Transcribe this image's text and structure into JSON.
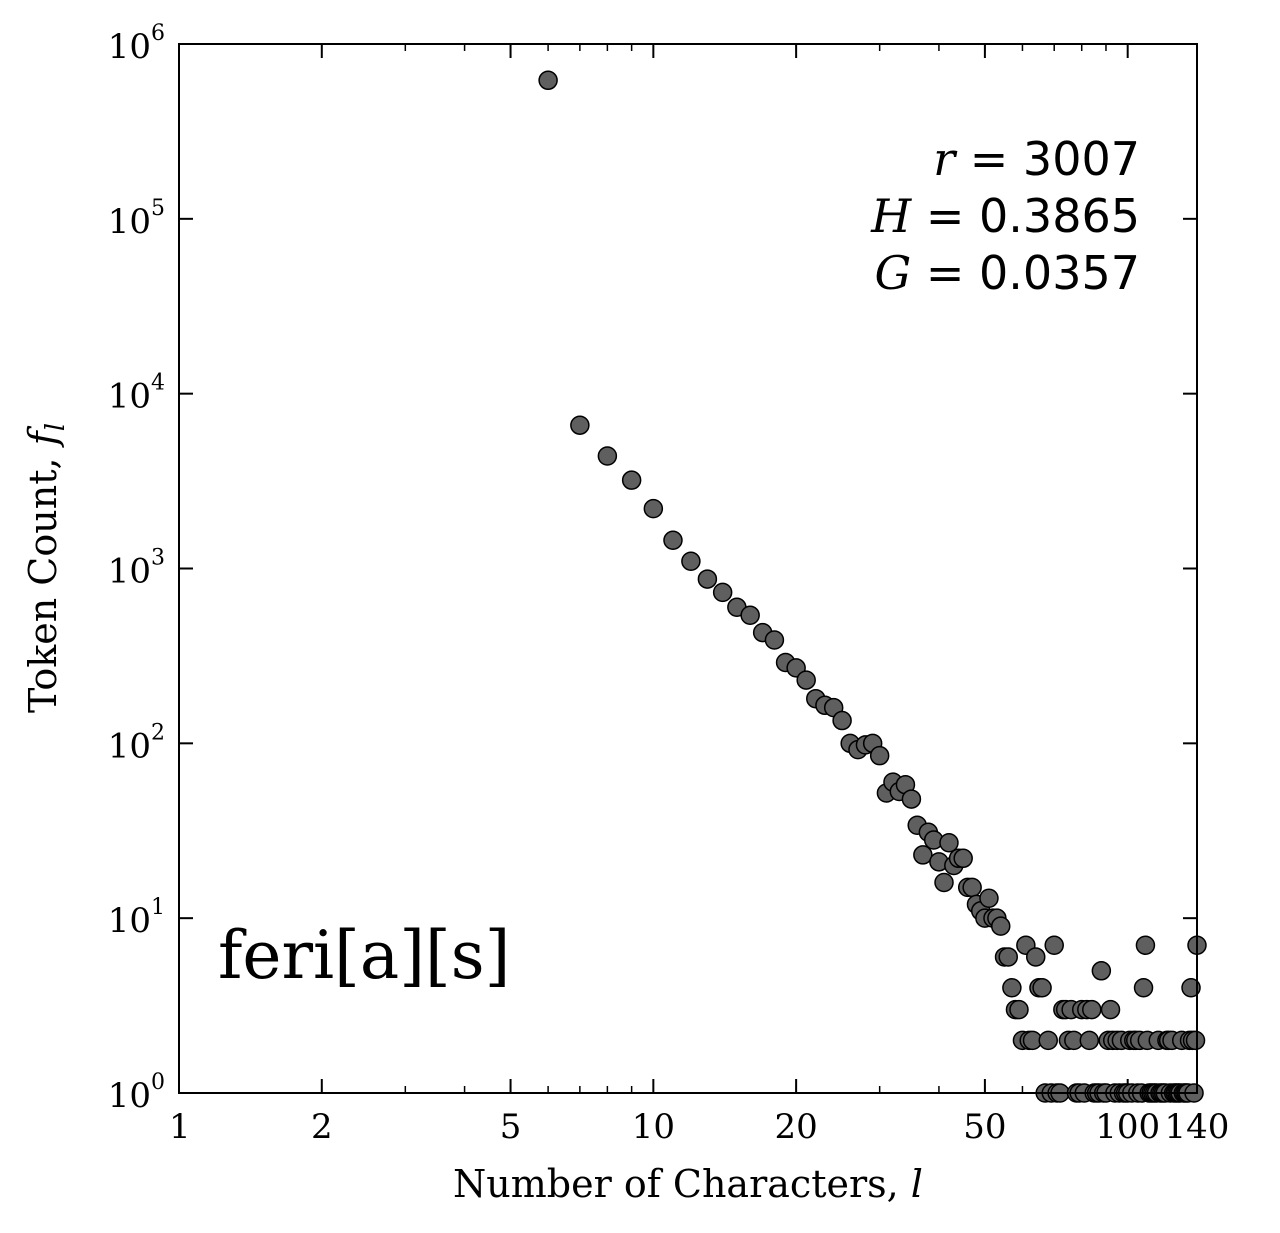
{
  "chart_data": {
    "type": "scatter",
    "xscale": "log",
    "yscale": "log",
    "xlabel": "Number of Characters, ",
    "xlabel_var": "l",
    "ylabel": "Token Count, ",
    "ylabel_var": "f",
    "ylabel_sub": "l",
    "xlim": [
      1,
      140
    ],
    "ylim": [
      1,
      1000000
    ],
    "xticks": [
      {
        "value": 1,
        "label": "1"
      },
      {
        "value": 2,
        "label": "2"
      },
      {
        "value": 5,
        "label": "5"
      },
      {
        "value": 10,
        "label": "10"
      },
      {
        "value": 20,
        "label": "20"
      },
      {
        "value": 50,
        "label": "50"
      },
      {
        "value": 100,
        "label": "100"
      },
      {
        "value": 140,
        "label": "140"
      }
    ],
    "yticks": [
      {
        "value": 1,
        "base": "10",
        "exp": "0"
      },
      {
        "value": 10,
        "base": "10",
        "exp": "1"
      },
      {
        "value": 100,
        "base": "10",
        "exp": "2"
      },
      {
        "value": 1000,
        "base": "10",
        "exp": "3"
      },
      {
        "value": 10000,
        "base": "10",
        "exp": "4"
      },
      {
        "value": 100000,
        "base": "10",
        "exp": "5"
      },
      {
        "value": 1000000,
        "base": "10",
        "exp": "6"
      }
    ],
    "panel_label": "feri[a][s]",
    "stats": [
      {
        "var": "r",
        "text": " = 3007"
      },
      {
        "var": "H",
        "text": " = 0.3865"
      },
      {
        "var": "G",
        "text": " = 0.0357"
      }
    ],
    "x": [
      6,
      7,
      8,
      9,
      10,
      11,
      12,
      13,
      14,
      15,
      16,
      17,
      18,
      19,
      20,
      21,
      22,
      23,
      24,
      25,
      26,
      27,
      28,
      29,
      30,
      31,
      32,
      33,
      34,
      35,
      36,
      37,
      38,
      39,
      40,
      41,
      42,
      43,
      44,
      45,
      46,
      47,
      48,
      49,
      50,
      51,
      52,
      53,
      54,
      55,
      56,
      57,
      58,
      59,
      60,
      61,
      62,
      63,
      64,
      65,
      66,
      67,
      68,
      69,
      70,
      71,
      72,
      73,
      74,
      75,
      76,
      77,
      78,
      79,
      80,
      81,
      82,
      83,
      84,
      85,
      86,
      87,
      88,
      89,
      90,
      91,
      92,
      93,
      94,
      95,
      96,
      97,
      98,
      99,
      100,
      101,
      102,
      103,
      104,
      105,
      106,
      107,
      108,
      109,
      110,
      111,
      112,
      113,
      114,
      115,
      116,
      117,
      118,
      119,
      120,
      121,
      122,
      123,
      124,
      125,
      126,
      127,
      128,
      129,
      130,
      131,
      132,
      133,
      134,
      135,
      136,
      137,
      138,
      139,
      140
    ],
    "y": [
      620000,
      6600,
      4400,
      3200,
      2200,
      1450,
      1100,
      870,
      730,
      600,
      540,
      430,
      390,
      290,
      270,
      230,
      180,
      165,
      160,
      135,
      100,
      92,
      98,
      100,
      85,
      52,
      60,
      53,
      58,
      48,
      34,
      23,
      31,
      28,
      21,
      16,
      27,
      20,
      22,
      22,
      15,
      15,
      12,
      11,
      10,
      13,
      10,
      10,
      9,
      6,
      6,
      4,
      3,
      3,
      2,
      7,
      2,
      2,
      6,
      4,
      4,
      1,
      2,
      1,
      7,
      1,
      1,
      3,
      3,
      2,
      3,
      2,
      1,
      1,
      3,
      1,
      3,
      2,
      3,
      1,
      1,
      1,
      5,
      1,
      1,
      2,
      3,
      2,
      1,
      2,
      1,
      2,
      1,
      1,
      1,
      2,
      1,
      2,
      2,
      1,
      2,
      1,
      4,
      7,
      2,
      1,
      1,
      1,
      1,
      1,
      2,
      1,
      1,
      1,
      1,
      2,
      2,
      1,
      2,
      1,
      1,
      1,
      1,
      1,
      2,
      1,
      1,
      1,
      1,
      2,
      4,
      2,
      1,
      2,
      7
    ]
  }
}
